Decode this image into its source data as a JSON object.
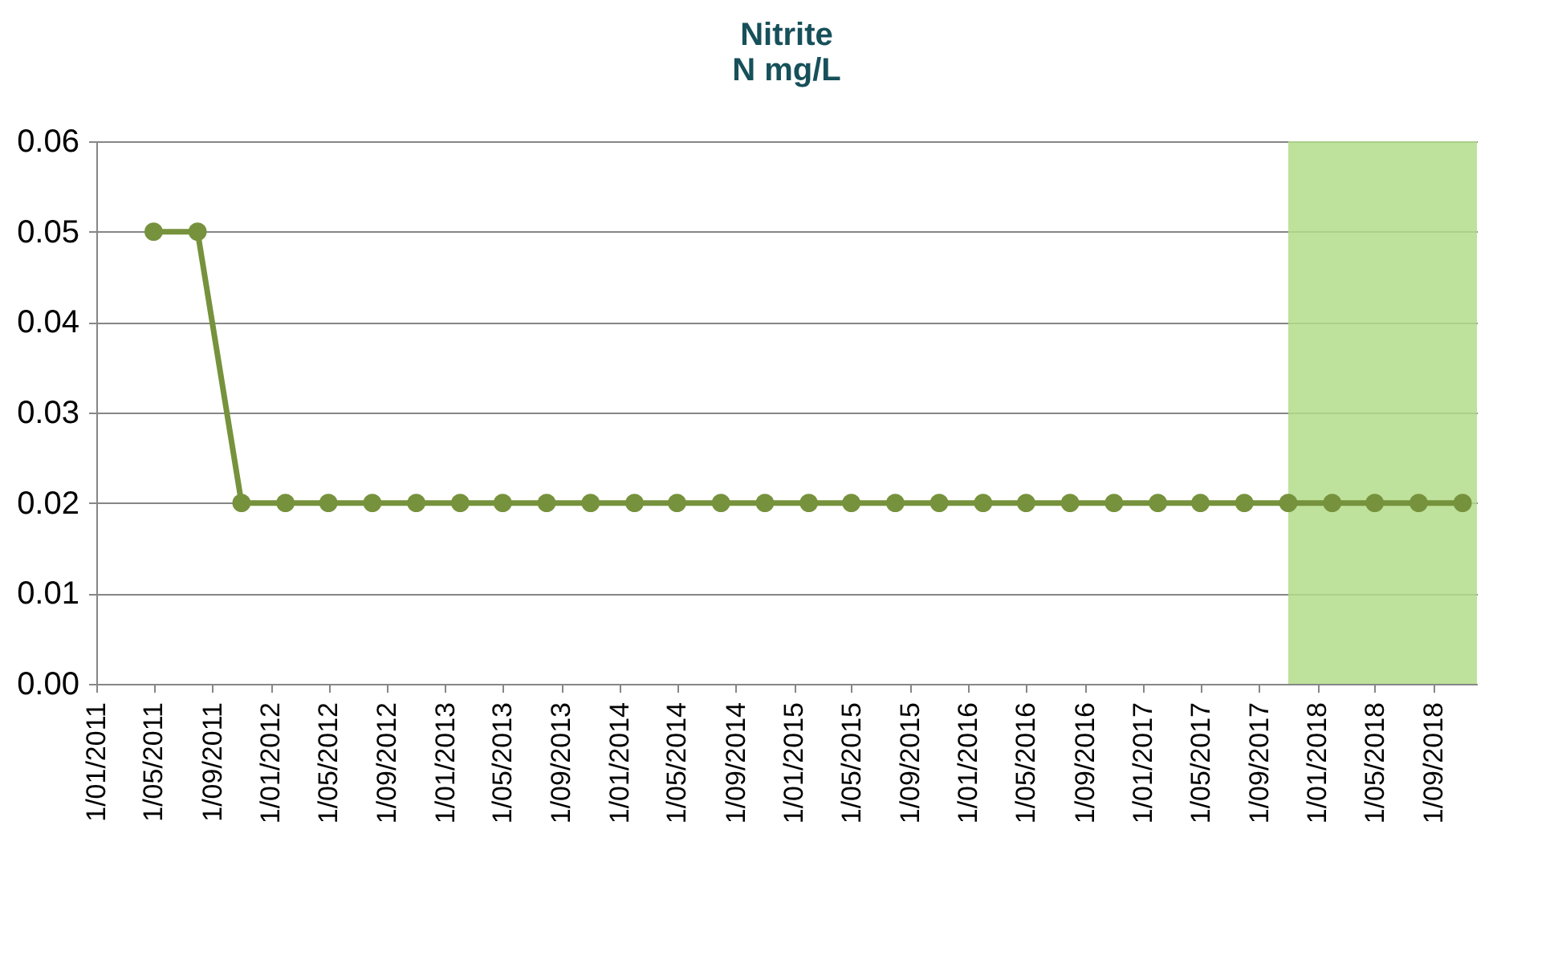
{
  "chart_data": {
    "type": "line",
    "title": [
      "Nitrite",
      "N mg/L"
    ],
    "x": [
      "2011-05",
      "2011-08",
      "2011-11",
      "2012-02",
      "2012-05",
      "2012-08",
      "2012-11",
      "2013-02",
      "2013-05",
      "2013-08",
      "2013-11",
      "2014-02",
      "2014-05",
      "2014-08",
      "2014-11",
      "2015-02",
      "2015-05",
      "2015-08",
      "2015-11",
      "2016-02",
      "2016-05",
      "2016-08",
      "2016-11",
      "2017-02",
      "2017-05",
      "2017-08",
      "2017-11",
      "2018-02",
      "2018-05",
      "2018-08",
      "2018-11"
    ],
    "series": [
      {
        "color": "#76923c",
        "values": [
          0.05,
          0.05,
          0.02,
          0.02,
          0.02,
          0.02,
          0.02,
          0.02,
          0.02,
          0.02,
          0.02,
          0.02,
          0.02,
          0.02,
          0.02,
          0.02,
          0.02,
          0.02,
          0.02,
          0.02,
          0.02,
          0.02,
          0.02,
          0.02,
          0.02,
          0.02,
          0.02,
          0.02,
          0.02,
          0.02,
          0.02
        ]
      }
    ],
    "xlim": [
      "2011-01-01",
      "2018-12-01"
    ],
    "xticks": [
      {
        "value": "2011-01-01",
        "label": "1/01/2011"
      },
      {
        "value": "2011-05-01",
        "label": "1/05/2011"
      },
      {
        "value": "2011-09-01",
        "label": "1/09/2011"
      },
      {
        "value": "2012-01-01",
        "label": "1/01/2012"
      },
      {
        "value": "2012-05-01",
        "label": "1/05/2012"
      },
      {
        "value": "2012-09-01",
        "label": "1/09/2012"
      },
      {
        "value": "2013-01-01",
        "label": "1/01/2013"
      },
      {
        "value": "2013-05-01",
        "label": "1/05/2013"
      },
      {
        "value": "2013-09-01",
        "label": "1/09/2013"
      },
      {
        "value": "2014-01-01",
        "label": "1/01/2014"
      },
      {
        "value": "2014-05-01",
        "label": "1/05/2014"
      },
      {
        "value": "2014-09-01",
        "label": "1/09/2014"
      },
      {
        "value": "2015-01-01",
        "label": "1/01/2015"
      },
      {
        "value": "2015-05-01",
        "label": "1/05/2015"
      },
      {
        "value": "2015-09-01",
        "label": "1/09/2015"
      },
      {
        "value": "2016-01-01",
        "label": "1/01/2016"
      },
      {
        "value": "2016-05-01",
        "label": "1/05/2016"
      },
      {
        "value": "2016-09-01",
        "label": "1/09/2016"
      },
      {
        "value": "2017-01-01",
        "label": "1/01/2017"
      },
      {
        "value": "2017-05-01",
        "label": "1/05/2017"
      },
      {
        "value": "2017-09-01",
        "label": "1/09/2017"
      },
      {
        "value": "2018-01-01",
        "label": "1/01/2018"
      },
      {
        "value": "2018-05-01",
        "label": "1/05/2018"
      },
      {
        "value": "2018-09-01",
        "label": "1/09/2018"
      }
    ],
    "ylim": [
      0,
      0.06
    ],
    "yticks": [
      {
        "value": 0,
        "label": "0.00"
      },
      {
        "value": 0.01,
        "label": "0.01"
      },
      {
        "value": 0.02,
        "label": "0.02"
      },
      {
        "value": 0.03,
        "label": "0.03"
      },
      {
        "value": 0.04,
        "label": "0.04"
      },
      {
        "value": 0.05,
        "label": "0.05"
      },
      {
        "value": 0.06,
        "label": "0.06"
      }
    ],
    "grid": "y",
    "marker": "circle",
    "line_style": "solid",
    "bands": [
      {
        "axis": "x",
        "from": "2017-11-01",
        "to": "2018-12-01",
        "color": "#b3dc8a"
      }
    ]
  }
}
